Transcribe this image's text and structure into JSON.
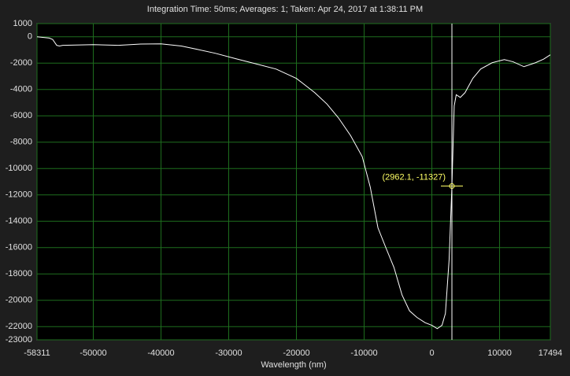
{
  "chart_data": {
    "type": "line",
    "title": "Integration Time: 50ms;  Averages: 1;  Taken: Apr 24, 2017 at 1:38:11 PM",
    "x_label": "Wavelength (nm)",
    "xlim": [
      -58311,
      17494
    ],
    "ylim": [
      -23000,
      1000
    ],
    "xticks": [
      -58311,
      -50000,
      -40000,
      -30000,
      -20000,
      -10000,
      0,
      10000,
      17494
    ],
    "yticks": [
      1000,
      0,
      -2000,
      -4000,
      -6000,
      -8000,
      -10000,
      -12000,
      -14000,
      -16000,
      -18000,
      -20000,
      -22000,
      -23000
    ],
    "grid": true,
    "series": [
      {
        "color": "#ffffff",
        "x": [
          -58311,
          -56500,
          -56000,
          -55400,
          -55000,
          -54500,
          -50000,
          -46300,
          -43000,
          -40000,
          -37000,
          -34700,
          -32000,
          -28900,
          -26000,
          -23000,
          -20000,
          -17300,
          -15500,
          -13800,
          -12000,
          -10280,
          -9100,
          -7960,
          -6800,
          -5600,
          -4400,
          -3300,
          -2200,
          -1000,
          0,
          800,
          1500,
          2000,
          2550,
          2962,
          3300,
          3600,
          4200,
          4900,
          6050,
          7200,
          8900,
          10700,
          12000,
          13600,
          15300,
          16500,
          17494
        ],
        "values": [
          0,
          -100,
          -200,
          -650,
          -700,
          -650,
          -600,
          -650,
          -550,
          -540,
          -700,
          -950,
          -1250,
          -1670,
          -2050,
          -2450,
          -3160,
          -4240,
          -5100,
          -6150,
          -7500,
          -9100,
          -11400,
          -14500,
          -16000,
          -17500,
          -19600,
          -20800,
          -21300,
          -21700,
          -21900,
          -22150,
          -21900,
          -21000,
          -16900,
          -11327,
          -5250,
          -4400,
          -4600,
          -4240,
          -3160,
          -2450,
          -1970,
          -1730,
          -1900,
          -2270,
          -1970,
          -1700,
          -1370
        ]
      }
    ],
    "annotation": {
      "x": 2962.1,
      "y": -11327,
      "label": "(2962.1, -11327)",
      "color": "#ffff66"
    }
  }
}
